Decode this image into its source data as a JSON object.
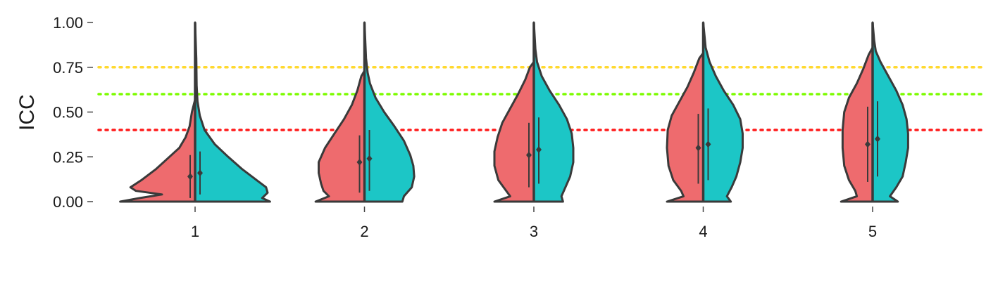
{
  "chart_data": {
    "type": "violin",
    "ylabel": "ICC",
    "xlabel": "",
    "ylim": [
      0,
      1
    ],
    "y_ticks": [
      "0.00",
      "0.25",
      "0.50",
      "0.75",
      "1.00"
    ],
    "categories": [
      "1",
      "2",
      "3",
      "4",
      "5"
    ],
    "grid": false,
    "reference_lines": [
      {
        "y": 0.75,
        "color": "#FFD92F",
        "style": "dotted"
      },
      {
        "y": 0.6,
        "color": "#7CFC00",
        "style": "dotted"
      },
      {
        "y": 0.4,
        "color": "#FF1A1A",
        "style": "dotted"
      }
    ],
    "series": [
      {
        "color": "#EE6B6E",
        "side": "left",
        "groups": [
          {
            "mean": 0.14,
            "low": 0.02,
            "high": 0.26,
            "max": 0.57,
            "profile": [
              [
                0.0,
                0.95
              ],
              [
                0.02,
                0.7
              ],
              [
                0.04,
                0.42
              ],
              [
                0.06,
                0.75
              ],
              [
                0.08,
                0.82
              ],
              [
                0.12,
                0.68
              ],
              [
                0.18,
                0.5
              ],
              [
                0.24,
                0.35
              ],
              [
                0.3,
                0.2
              ],
              [
                0.36,
                0.12
              ],
              [
                0.42,
                0.07
              ],
              [
                0.5,
                0.04
              ],
              [
                0.57,
                0.0
              ]
            ]
          },
          {
            "mean": 0.22,
            "low": 0.05,
            "high": 0.37,
            "max": 0.73,
            "profile": [
              [
                0.0,
                0.62
              ],
              [
                0.03,
                0.45
              ],
              [
                0.06,
                0.52
              ],
              [
                0.1,
                0.55
              ],
              [
                0.16,
                0.58
              ],
              [
                0.22,
                0.58
              ],
              [
                0.3,
                0.5
              ],
              [
                0.38,
                0.38
              ],
              [
                0.46,
                0.26
              ],
              [
                0.54,
                0.16
              ],
              [
                0.62,
                0.09
              ],
              [
                0.7,
                0.04
              ],
              [
                0.73,
                0.0
              ]
            ]
          },
          {
            "mean": 0.26,
            "low": 0.08,
            "high": 0.44,
            "max": 0.78,
            "profile": [
              [
                0.0,
                0.5
              ],
              [
                0.03,
                0.3
              ],
              [
                0.06,
                0.35
              ],
              [
                0.12,
                0.45
              ],
              [
                0.2,
                0.5
              ],
              [
                0.28,
                0.5
              ],
              [
                0.36,
                0.46
              ],
              [
                0.44,
                0.4
              ],
              [
                0.52,
                0.3
              ],
              [
                0.6,
                0.2
              ],
              [
                0.68,
                0.11
              ],
              [
                0.75,
                0.05
              ],
              [
                0.78,
                0.0
              ]
            ]
          },
          {
            "mean": 0.3,
            "low": 0.1,
            "high": 0.49,
            "max": 0.83,
            "profile": [
              [
                0.0,
                0.46
              ],
              [
                0.03,
                0.25
              ],
              [
                0.06,
                0.28
              ],
              [
                0.12,
                0.38
              ],
              [
                0.2,
                0.44
              ],
              [
                0.3,
                0.46
              ],
              [
                0.4,
                0.45
              ],
              [
                0.48,
                0.4
              ],
              [
                0.56,
                0.3
              ],
              [
                0.64,
                0.2
              ],
              [
                0.72,
                0.12
              ],
              [
                0.8,
                0.05
              ],
              [
                0.83,
                0.0
              ]
            ]
          },
          {
            "mean": 0.32,
            "low": 0.11,
            "high": 0.53,
            "max": 0.86,
            "profile": [
              [
                0.0,
                0.4
              ],
              [
                0.03,
                0.2
              ],
              [
                0.06,
                0.22
              ],
              [
                0.12,
                0.3
              ],
              [
                0.2,
                0.36
              ],
              [
                0.3,
                0.38
              ],
              [
                0.4,
                0.38
              ],
              [
                0.5,
                0.36
              ],
              [
                0.58,
                0.3
              ],
              [
                0.66,
                0.2
              ],
              [
                0.74,
                0.12
              ],
              [
                0.82,
                0.05
              ],
              [
                0.86,
                0.0
              ]
            ]
          }
        ]
      },
      {
        "color": "#1CC6C6",
        "side": "right",
        "groups": [
          {
            "mean": 0.16,
            "low": 0.04,
            "high": 0.28,
            "max": 1.0,
            "profile": [
              [
                0.0,
                0.95
              ],
              [
                0.02,
                0.85
              ],
              [
                0.05,
                0.92
              ],
              [
                0.08,
                0.9
              ],
              [
                0.12,
                0.78
              ],
              [
                0.18,
                0.6
              ],
              [
                0.25,
                0.42
              ],
              [
                0.32,
                0.25
              ],
              [
                0.4,
                0.12
              ],
              [
                0.48,
                0.06
              ],
              [
                0.56,
                0.03
              ],
              [
                0.65,
                0.02
              ],
              [
                0.8,
                0.015
              ],
              [
                1.0,
                0.0
              ]
            ]
          },
          {
            "mean": 0.24,
            "low": 0.06,
            "high": 0.4,
            "max": 1.0,
            "profile": [
              [
                0.0,
                0.48
              ],
              [
                0.03,
                0.5
              ],
              [
                0.08,
                0.6
              ],
              [
                0.14,
                0.63
              ],
              [
                0.2,
                0.62
              ],
              [
                0.26,
                0.58
              ],
              [
                0.34,
                0.5
              ],
              [
                0.42,
                0.38
              ],
              [
                0.5,
                0.25
              ],
              [
                0.58,
                0.14
              ],
              [
                0.66,
                0.07
              ],
              [
                0.72,
                0.04
              ],
              [
                0.8,
                0.02
              ],
              [
                1.0,
                0.0
              ]
            ]
          },
          {
            "mean": 0.29,
            "low": 0.1,
            "high": 0.47,
            "max": 1.0,
            "profile": [
              [
                0.0,
                0.37
              ],
              [
                0.03,
                0.35
              ],
              [
                0.08,
                0.4
              ],
              [
                0.14,
                0.46
              ],
              [
                0.22,
                0.5
              ],
              [
                0.3,
                0.5
              ],
              [
                0.38,
                0.48
              ],
              [
                0.46,
                0.42
              ],
              [
                0.54,
                0.32
              ],
              [
                0.62,
                0.2
              ],
              [
                0.7,
                0.1
              ],
              [
                0.78,
                0.04
              ],
              [
                0.85,
                0.02
              ],
              [
                1.0,
                0.0
              ]
            ]
          },
          {
            "mean": 0.32,
            "low": 0.12,
            "high": 0.52,
            "max": 1.0,
            "profile": [
              [
                0.0,
                0.35
              ],
              [
                0.03,
                0.3
              ],
              [
                0.08,
                0.36
              ],
              [
                0.14,
                0.42
              ],
              [
                0.22,
                0.47
              ],
              [
                0.3,
                0.5
              ],
              [
                0.38,
                0.5
              ],
              [
                0.46,
                0.47
              ],
              [
                0.54,
                0.38
              ],
              [
                0.62,
                0.26
              ],
              [
                0.7,
                0.16
              ],
              [
                0.78,
                0.08
              ],
              [
                0.86,
                0.03
              ],
              [
                1.0,
                0.0
              ]
            ]
          },
          {
            "mean": 0.35,
            "low": 0.14,
            "high": 0.56,
            "max": 1.0,
            "profile": [
              [
                0.0,
                0.32
              ],
              [
                0.03,
                0.22
              ],
              [
                0.08,
                0.3
              ],
              [
                0.14,
                0.38
              ],
              [
                0.22,
                0.42
              ],
              [
                0.3,
                0.45
              ],
              [
                0.38,
                0.45
              ],
              [
                0.46,
                0.43
              ],
              [
                0.54,
                0.38
              ],
              [
                0.62,
                0.3
              ],
              [
                0.7,
                0.2
              ],
              [
                0.78,
                0.1
              ],
              [
                0.84,
                0.04
              ],
              [
                0.9,
                0.02
              ],
              [
                1.0,
                0.0
              ]
            ]
          }
        ]
      }
    ]
  }
}
